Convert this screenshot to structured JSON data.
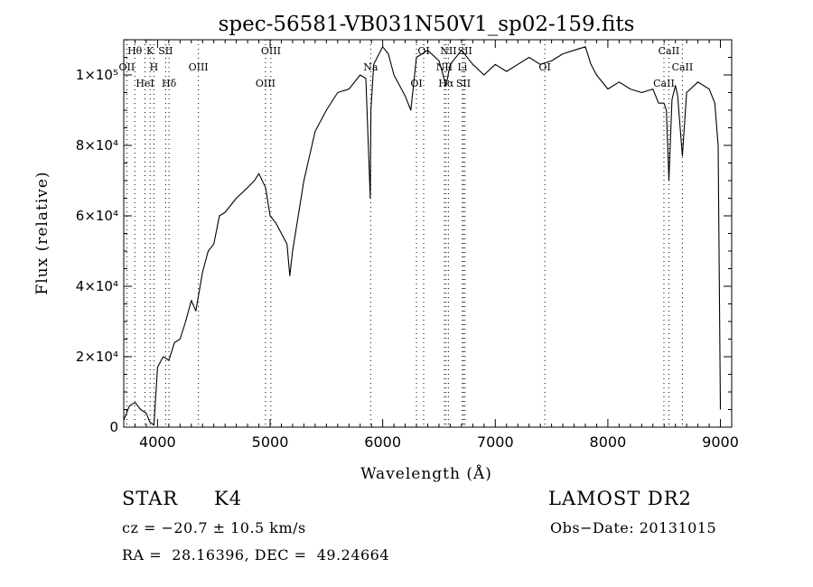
{
  "chart_data": {
    "type": "line",
    "title": "spec-56581-VB031N50V1_sp02-159.fits",
    "xlabel": "Wavelength (Å)",
    "ylabel": "Flux (relative)",
    "xlim": [
      3700,
      9100
    ],
    "ylim": [
      0,
      110000
    ],
    "xticks": [
      4000,
      5000,
      6000,
      7000,
      8000,
      9000
    ],
    "xtick_labels": [
      "4000",
      "5000",
      "6000",
      "7000",
      "8000",
      "9000"
    ],
    "yticks": [
      {
        "value": 0,
        "label": "0"
      },
      {
        "value": 20000,
        "label": "2×10⁴"
      },
      {
        "value": 40000,
        "label": "4×10⁴"
      },
      {
        "value": 60000,
        "label": "6×10⁴"
      },
      {
        "value": 80000,
        "label": "8×10⁴"
      },
      {
        "value": 100000,
        "label": "1×10⁵"
      }
    ],
    "grid": false,
    "spectrum": {
      "x": [
        3700,
        3750,
        3800,
        3850,
        3900,
        3930,
        3968,
        4000,
        4050,
        4101,
        4150,
        4200,
        4250,
        4300,
        4340,
        4400,
        4450,
        4500,
        4550,
        4600,
        4700,
        4800,
        4861,
        4900,
        4960,
        5000,
        5050,
        5100,
        5150,
        5175,
        5200,
        5300,
        5400,
        5500,
        5600,
        5700,
        5800,
        5850,
        5890,
        5895,
        5920,
        6000,
        6050,
        6100,
        6200,
        6250,
        6300,
        6400,
        6500,
        6563,
        6600,
        6700,
        6800,
        6900,
        7000,
        7100,
        7200,
        7300,
        7400,
        7500,
        7600,
        7700,
        7800,
        7850,
        7900,
        8000,
        8100,
        8200,
        8300,
        8400,
        8450,
        8498,
        8520,
        8542,
        8570,
        8600,
        8620,
        8662,
        8700,
        8800,
        8900,
        8950,
        8980,
        9000
      ],
      "y": [
        2000,
        6000,
        7000,
        5000,
        4000,
        1500,
        600,
        17000,
        20000,
        19000,
        24000,
        25000,
        30000,
        36000,
        33000,
        44000,
        50000,
        52000,
        60000,
        61000,
        65000,
        68000,
        70000,
        72000,
        68000,
        60000,
        58000,
        55000,
        52000,
        43000,
        50000,
        70000,
        84000,
        90000,
        95000,
        96000,
        100000,
        99000,
        65000,
        90000,
        103000,
        108000,
        106000,
        100000,
        94000,
        90000,
        105000,
        107000,
        104000,
        97000,
        103000,
        107000,
        103000,
        100000,
        103000,
        101000,
        103000,
        105000,
        103000,
        104000,
        106000,
        107000,
        108000,
        103000,
        100000,
        96000,
        98000,
        96000,
        95000,
        96000,
        92000,
        92000,
        90000,
        70000,
        93000,
        97000,
        94000,
        77000,
        95000,
        98000,
        96000,
        92000,
        80000,
        5000
      ]
    },
    "lines": [
      {
        "label": "Hθ",
        "wavelength": 3798
      },
      {
        "label": "OII",
        "wavelength": 3727
      },
      {
        "label": "HeI",
        "wavelength": 3889
      },
      {
        "label": "K",
        "wavelength": 3934
      },
      {
        "label": "H",
        "wavelength": 3968
      },
      {
        "label": "Hδ",
        "wavelength": 4102
      },
      {
        "label": "SII",
        "wavelength": 4072
      },
      {
        "label": "OIII",
        "wavelength": 4363
      },
      {
        "label": "OIII",
        "wavelength": 4959
      },
      {
        "label": "OIII",
        "wavelength": 5007
      },
      {
        "label": "Na",
        "wavelength": 5893
      },
      {
        "label": "OI",
        "wavelength": 6300
      },
      {
        "label": "OI",
        "wavelength": 6364
      },
      {
        "label": "NII",
        "wavelength": 6548
      },
      {
        "label": "Hα",
        "wavelength": 6563
      },
      {
        "label": "NII",
        "wavelength": 6584
      },
      {
        "label": "Li",
        "wavelength": 6708
      },
      {
        "label": "SII",
        "wavelength": 6717
      },
      {
        "label": "SII",
        "wavelength": 6731
      },
      {
        "label": "OI",
        "wavelength": 7440
      },
      {
        "label": "CaII",
        "wavelength": 8498
      },
      {
        "label": "CaII",
        "wavelength": 8542
      },
      {
        "label": "CaII",
        "wavelength": 8662
      }
    ]
  },
  "info": {
    "class_label": "STAR",
    "subclass": "K4",
    "survey": "LAMOST DR2",
    "cz": "cz = −20.7 ± 10.5 km/s",
    "obs_date": "Obs−Date: 20131015",
    "coords": "RA =  28.16396, DEC =  49.24664"
  }
}
